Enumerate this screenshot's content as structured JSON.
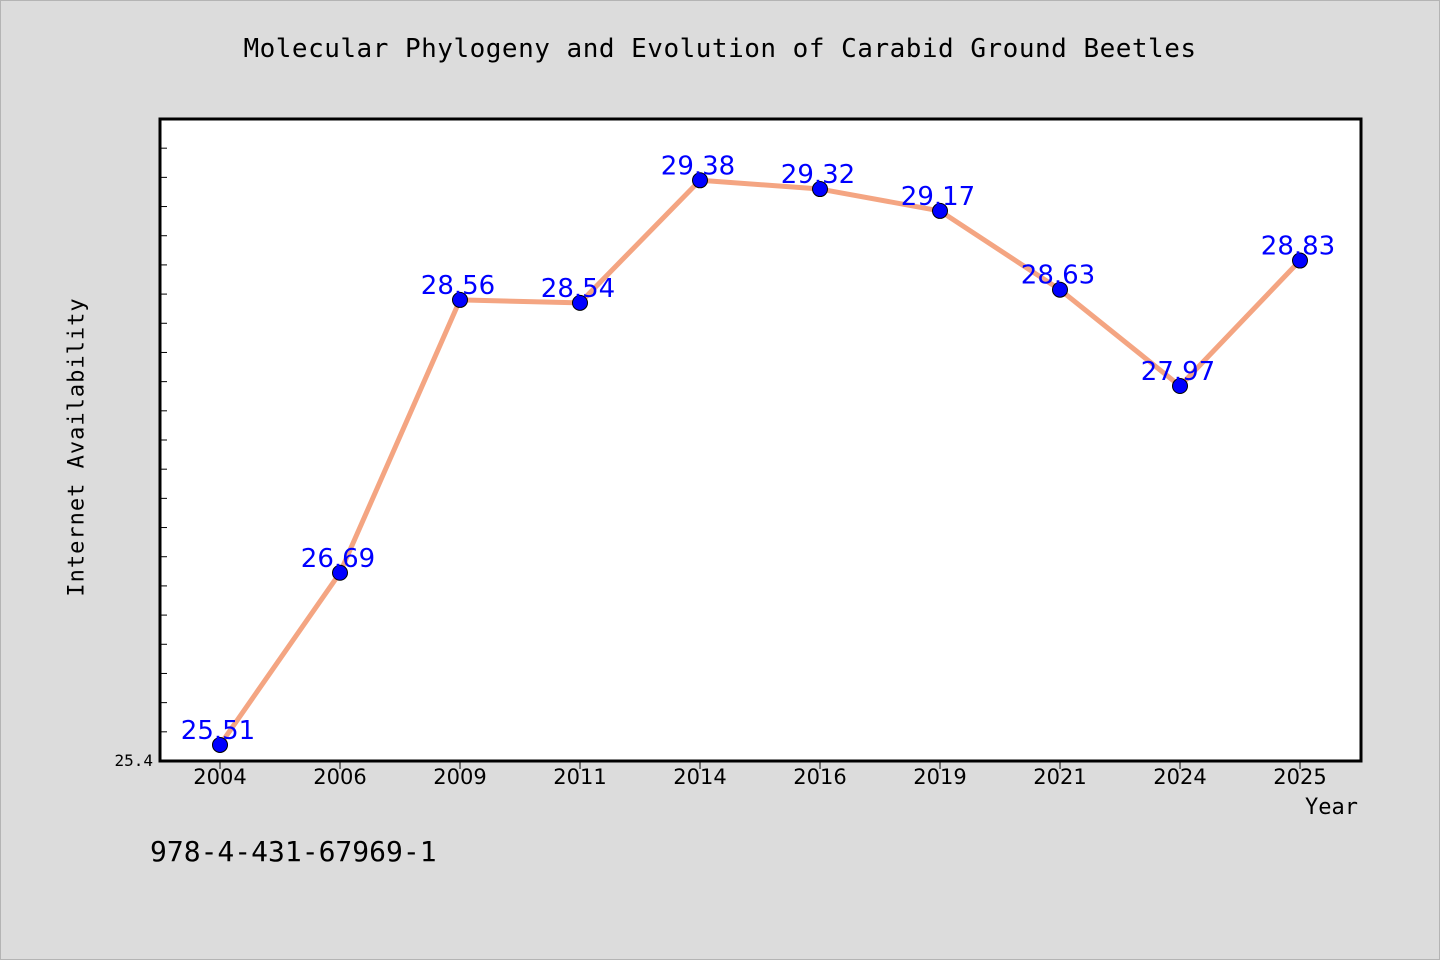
{
  "chart_data": {
    "type": "line",
    "title": "Molecular Phylogeny and Evolution of Carabid Ground Beetles",
    "xlabel": "Year",
    "ylabel": "Internet Availability",
    "categories": [
      "2004",
      "2006",
      "2009",
      "2011",
      "2014",
      "2016",
      "2019",
      "2021",
      "2024",
      "2025"
    ],
    "values": [
      25.51,
      26.69,
      28.56,
      28.54,
      29.38,
      29.32,
      29.17,
      28.63,
      27.97,
      28.83
    ],
    "value_labels": [
      "25.51",
      "26.69",
      "28.56",
      "28.54",
      "29.38",
      "29.32",
      "29.17",
      "28.63",
      "27.97",
      "28.83"
    ],
    "ytick_labels": [
      "25.4"
    ],
    "ylim": [
      25.4,
      29.8
    ],
    "grid": false,
    "colors": {
      "line": "#f4a582",
      "marker": "#0000ff",
      "label": "#0000ff"
    }
  },
  "footer": {
    "isbn": "978-4-431-67969-1"
  }
}
